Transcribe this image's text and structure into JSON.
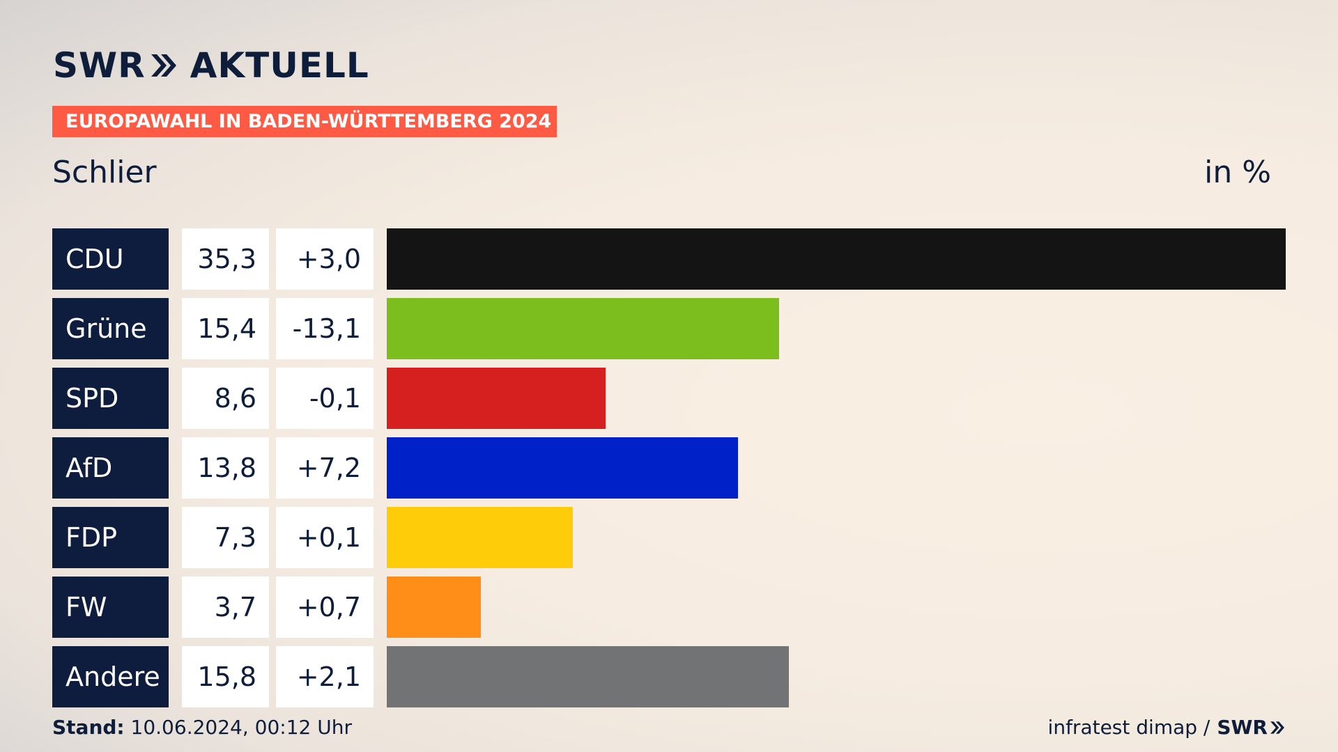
{
  "brand": {
    "logo_left": "SWR",
    "logo_right": "AKTUELL"
  },
  "banner": "EUROPAWAHL IN BADEN-WÜRTTEMBERG 2024",
  "region": "Schlier",
  "unit": "in %",
  "footer": {
    "stand_label": "Stand:",
    "stand_value": "10.06.2024, 00:12 Uhr",
    "source": "infratest dimap /",
    "source_brand": "SWR"
  },
  "colors": {
    "banner": "#ff5a44",
    "party_cell": "#0e1d3e"
  },
  "chart_data": {
    "type": "bar",
    "orientation": "horizontal",
    "categories": [
      "CDU",
      "Grüne",
      "SPD",
      "AfD",
      "FDP",
      "FW",
      "Andere"
    ],
    "values": [
      35.3,
      15.4,
      8.6,
      13.8,
      7.3,
      3.7,
      15.8
    ],
    "value_labels": [
      "35,3",
      "15,4",
      "8,6",
      "13,8",
      "7,3",
      "3,7",
      "15,8"
    ],
    "diff_labels": [
      "+3,0",
      "-13,1",
      "-0,1",
      "+7,2",
      "+0,1",
      "+0,7",
      "+2,1"
    ],
    "bar_colors": [
      "#141414",
      "#7bbe1e",
      "#d61f1f",
      "#0020c8",
      "#ffcc0a",
      "#ff8e18",
      "#727375"
    ],
    "xlim": [
      0,
      35.3
    ]
  }
}
